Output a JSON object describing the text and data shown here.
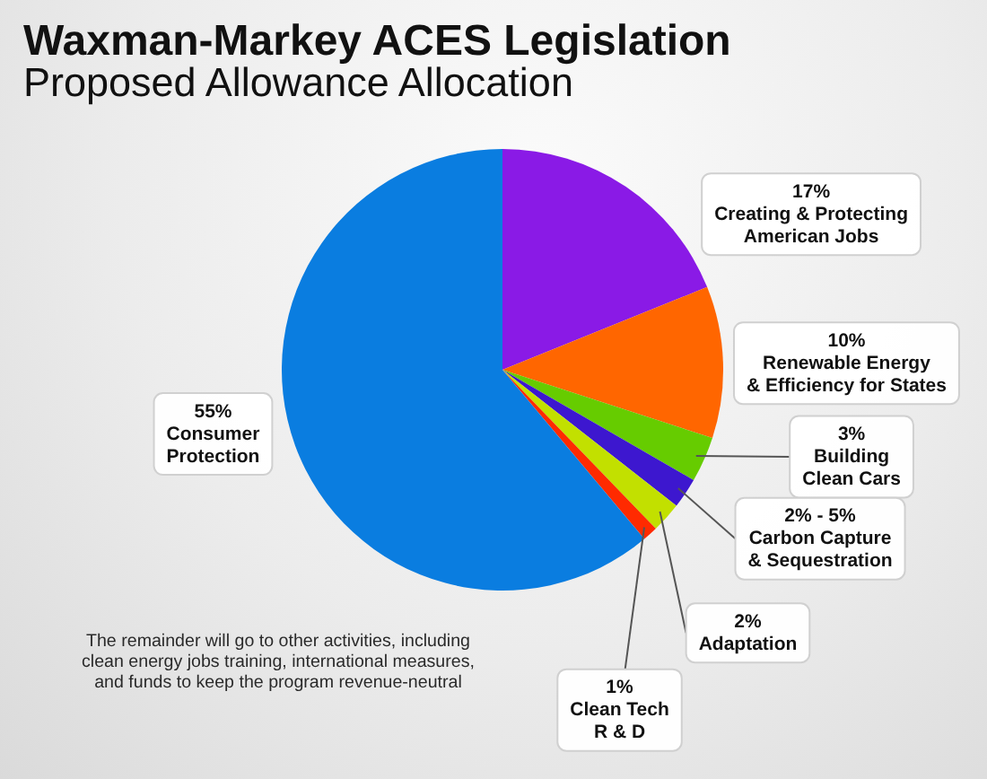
{
  "chart_data": {
    "type": "pie",
    "title": "Waxman-Markey ACES Legislation",
    "subtitle": "Proposed Allowance Allocation",
    "categories": [
      "Creating & Protecting\nAmerican Jobs",
      "Renewable Energy\n& Efficiency for States",
      "Building\nClean Cars",
      "Carbon Capture\n& Sequestration",
      "Adaptation",
      "Clean Tech\nR & D",
      "Consumer\nProtection"
    ],
    "values": [
      17,
      10,
      3,
      2,
      2,
      1,
      55
    ],
    "value_labels": [
      "17%",
      "10%",
      "3%",
      "2% - 5%",
      "2%",
      "1%",
      "55%"
    ],
    "colors": [
      "#8a1ae6",
      "#ff6600",
      "#66cc00",
      "#3d17cf",
      "#c2e000",
      "#ff2a00",
      "#0a7de0"
    ],
    "annotations": [
      "The remainder will go to other activities, including\nclean energy jobs training, international measures,\nand funds to keep the program revenue-neutral"
    ]
  }
}
